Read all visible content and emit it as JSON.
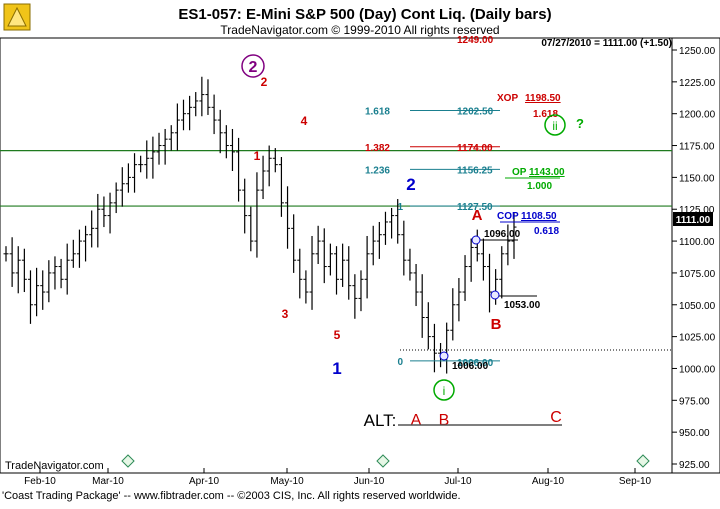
{
  "header": {
    "title": "ES1-057:  E-Mini S&P 500 (Day) Cont Liq.  (Daily bars)",
    "copyright": "TradeNavigator.com © 1999-2010 All rights reserved",
    "last_quote": "07/27/2010 = 1111.00 (+1.50)",
    "price_tag": "1111.00"
  },
  "footer": {
    "watermark": "TradeNavigator.com",
    "status": "'Coast Trading Package' -- www.fibtrader.com -- ©2003 CIS, Inc. All rights reserved worldwide."
  },
  "colors": {
    "bars": "#000000",
    "fib_red": "#cc0000",
    "fib_teal": "#1a7f8f",
    "fib_green": "#00aa00",
    "fib_blue": "#0000cc",
    "wave_purple": "#800080",
    "horizontal_line": "#1f7a1f"
  },
  "chart_data": {
    "type": "bar",
    "subtype": "ohlc-daily",
    "ylim": [
      925,
      1250
    ],
    "yticks": [
      925,
      950,
      975,
      1000,
      1025,
      1050,
      1075,
      1100,
      1125,
      1150,
      1175,
      1200,
      1225,
      1250
    ],
    "xticks": [
      "Feb-10",
      "Mar-10",
      "Apr-10",
      "May-10",
      "Jun-10",
      "Jul-10",
      "Aug-10",
      "Sep-10"
    ],
    "horizontal_lines": [
      1171,
      1127.5
    ],
    "support_levels": [
      1096,
      1053,
      1006,
      1011
    ],
    "close_series": [
      1090,
      1075,
      1085,
      1070,
      1050,
      1065,
      1060,
      1075,
      1080,
      1070,
      1085,
      1090,
      1100,
      1105,
      1110,
      1125,
      1120,
      1130,
      1140,
      1145,
      1150,
      1160,
      1160,
      1165,
      1170,
      1175,
      1180,
      1185,
      1195,
      1200,
      1205,
      1210,
      1215,
      1205,
      1195,
      1185,
      1175,
      1170,
      1140,
      1120,
      1100,
      1140,
      1155,
      1165,
      1160,
      1130,
      1110,
      1085,
      1070,
      1060,
      1090,
      1100,
      1080,
      1090,
      1070,
      1085,
      1065,
      1055,
      1070,
      1090,
      1100,
      1105,
      1115,
      1120,
      1105,
      1085,
      1075,
      1060,
      1040,
      1025,
      1012,
      1010,
      1030,
      1050,
      1060,
      1080,
      1095,
      1090,
      1080,
      1060,
      1070,
      1090,
      1100,
      1111
    ],
    "fib_levels": [
      {
        "ratio": "1.618",
        "value": "1202.50"
      },
      {
        "ratio": "1.382",
        "value": "1174.00"
      },
      {
        "ratio": "1.236",
        "value": "1156.25"
      },
      {
        "ratio": "1",
        "value": "1127.50"
      },
      {
        "ratio": "0",
        "value": "1006.00"
      }
    ],
    "top_partial_label": "1249.00",
    "projections": [
      {
        "name": "XOP",
        "value": "1198.50",
        "ratio": "1.618"
      },
      {
        "name": "OP",
        "value": "1143.00",
        "ratio": "1.000"
      },
      {
        "name": "COP",
        "value": "1108.50",
        "ratio": "0.618"
      }
    ],
    "price_labels": [
      "1096.00",
      "1053.00",
      "1006.00"
    ],
    "waves": {
      "circle_2": "2",
      "red_1": "1",
      "red_2": "2",
      "red_3": "3",
      "red_4": "4",
      "red_5": "5",
      "blue_1": "1",
      "blue_2": "2",
      "red_A": "A",
      "red_B": "B",
      "circle_ii": "ii",
      "question": "?",
      "circle_i": "i"
    },
    "alt": {
      "label": "ALT:",
      "a": "A",
      "b": "B",
      "c": "C"
    }
  }
}
